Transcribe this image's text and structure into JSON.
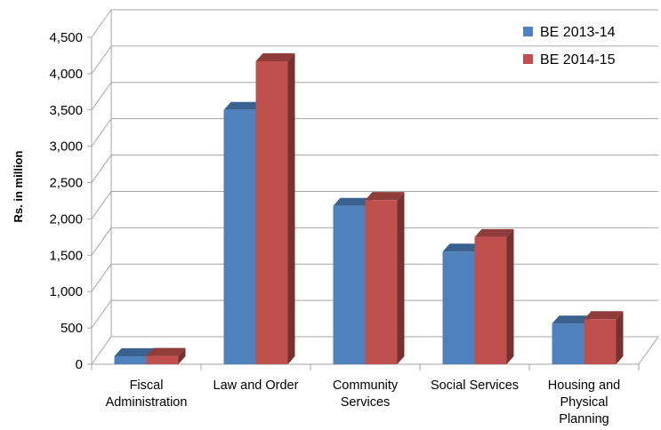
{
  "chart_data": {
    "type": "bar",
    "title": "",
    "xlabel": "",
    "ylabel": "Rs. in million",
    "ylim": [
      0,
      4500
    ],
    "ytick_step": 500,
    "ytick_labels": [
      "0",
      "500",
      "1,000",
      "1,500",
      "2,000",
      "2,500",
      "3,000",
      "3,500",
      "4,000",
      "4,500"
    ],
    "grid": true,
    "legend_position": "top-right",
    "categories": [
      [
        "Fiscal",
        "Administration"
      ],
      [
        "Law and Order"
      ],
      [
        "Community",
        "Services"
      ],
      [
        "Social Services"
      ],
      [
        "Housing and",
        "Physical",
        "Planning"
      ]
    ],
    "series": [
      {
        "name": "BE 2013-14",
        "color": "#4F81BD",
        "values": [
          110,
          3500,
          2180,
          1550,
          560
        ]
      },
      {
        "name": "BE 2014-15",
        "color": "#C0504D",
        "values": [
          115,
          4170,
          2260,
          1750,
          620
        ]
      }
    ]
  }
}
